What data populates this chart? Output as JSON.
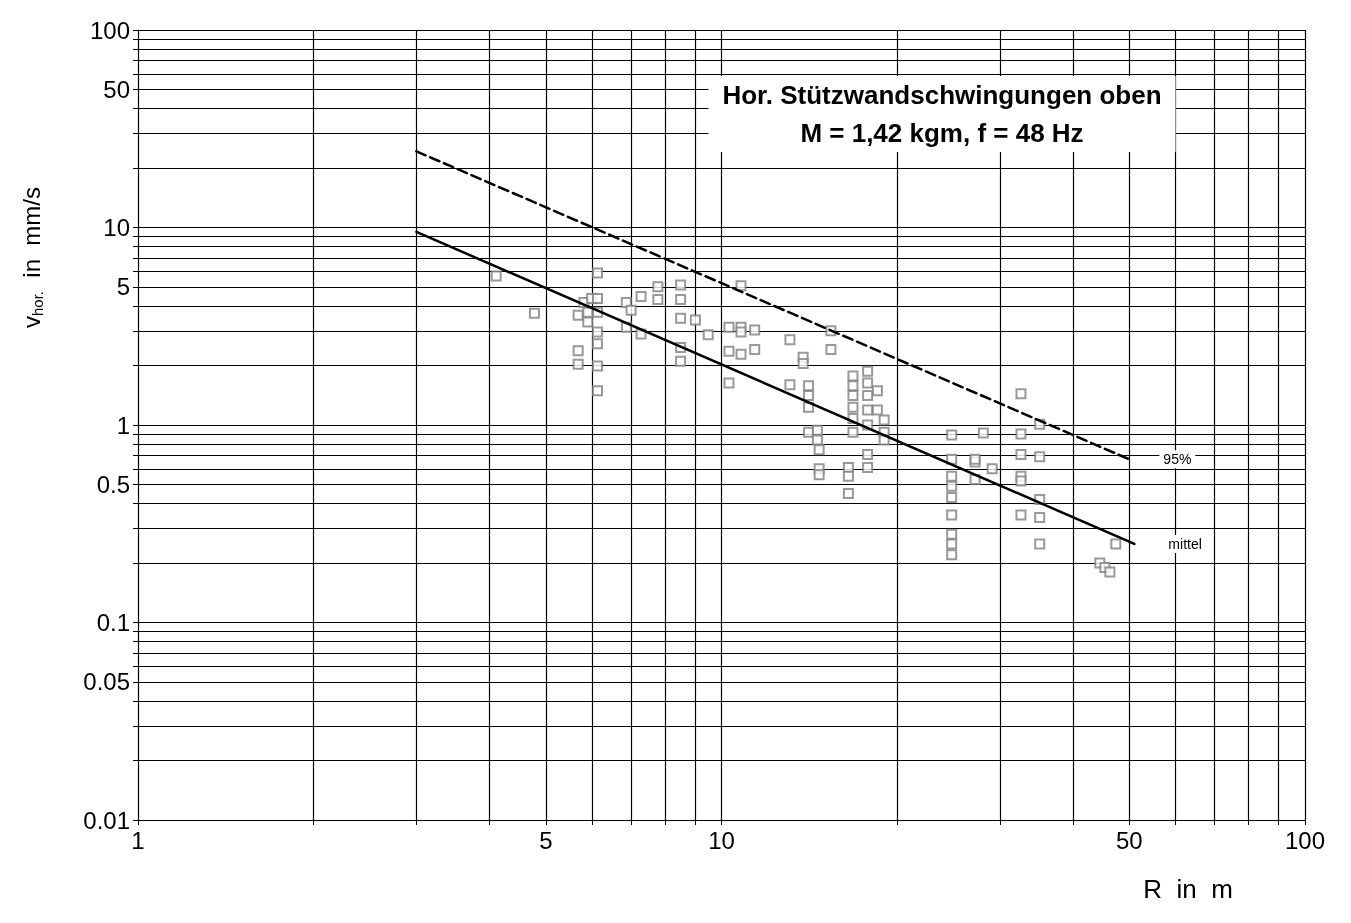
{
  "chart_data": {
    "type": "scatter",
    "title": "Hor. Stützwandschwingungen oben",
    "subtitle": "M = 1,42 kgm, f = 48 Hz",
    "xlabel": "R  in  m",
    "ylabel": "v$_{hor.}$  in  mm/s",
    "log": "xy",
    "grid": true,
    "legend": false,
    "xlim": [
      1,
      100
    ],
    "ylim": [
      0.01,
      100
    ],
    "xticks": [
      1,
      {
        "value": 2,
        "label": null
      },
      {
        "value": 3,
        "label": null
      },
      {
        "value": 4,
        "label": null
      },
      5,
      {
        "value": 6,
        "label": null
      },
      {
        "value": 7,
        "label": null
      },
      {
        "value": 8,
        "label": null
      },
      {
        "value": 9,
        "label": null
      },
      10,
      {
        "value": 20,
        "label": null
      },
      {
        "value": 30,
        "label": null
      },
      {
        "value": 40,
        "label": null
      },
      50,
      {
        "value": 60,
        "label": null
      },
      {
        "value": 70,
        "label": null
      },
      {
        "value": 80,
        "label": null
      },
      {
        "value": 90,
        "label": null
      },
      100
    ],
    "yticks": [
      0.01,
      {
        "value": 0.02,
        "label": null
      },
      {
        "value": 0.03,
        "label": null
      },
      {
        "value": 0.04,
        "label": null
      },
      0.05,
      {
        "value": 0.06,
        "label": null
      },
      {
        "value": 0.07,
        "label": null
      },
      {
        "value": 0.08,
        "label": null
      },
      {
        "value": 0.09,
        "label": null
      },
      0.1,
      {
        "value": 0.2,
        "label": null
      },
      {
        "value": 0.3,
        "label": null
      },
      {
        "value": 0.4,
        "label": null
      },
      0.5,
      {
        "value": 0.6,
        "label": null
      },
      {
        "value": 0.7,
        "label": null
      },
      {
        "value": 0.8,
        "label": null
      },
      {
        "value": 0.9,
        "label": null
      },
      1,
      {
        "value": 2,
        "label": null
      },
      {
        "value": 3,
        "label": null
      },
      {
        "value": 4,
        "label": null
      },
      5,
      {
        "value": 6,
        "label": null
      },
      {
        "value": 7,
        "label": null
      },
      {
        "value": 8,
        "label": null
      },
      {
        "value": 9,
        "label": null
      },
      10,
      {
        "value": 20,
        "label": null
      },
      {
        "value": 30,
        "label": null
      },
      {
        "value": 40,
        "label": null
      },
      50,
      {
        "value": 60,
        "label": null
      },
      {
        "value": 70,
        "label": null
      },
      {
        "value": 80,
        "label": null
      },
      {
        "value": 90,
        "label": null
      },
      100
    ],
    "series": [
      {
        "marker": "square",
        "color": "#808080",
        "x": [
          4.11,
          4.78,
          5.68,
          5.68,
          5.68,
          5.81,
          5.9,
          5.99,
          6.13,
          6.13,
          6.13,
          6.13,
          6.13,
          6.13,
          6.13,
          5.9,
          6.87,
          6.87,
          7.0,
          7.28,
          7.28,
          7.78,
          7.78,
          8.51,
          8.51,
          8.51,
          8.51,
          8.51,
          9.02,
          9.49,
          10.3,
          10.3,
          10.3,
          10.8,
          10.8,
          10.8,
          10.8,
          11.4,
          11.4,
          13.1,
          13.8,
          13.8,
          15.4,
          15.4,
          13.1,
          14.1,
          14.1,
          14.1,
          14.1,
          14.6,
          14.6,
          14.7,
          14.7,
          14.7,
          16.5,
          16.5,
          16.5,
          16.8,
          16.8,
          16.8,
          16.8,
          16.8,
          16.8,
          17.8,
          17.8,
          17.8,
          17.8,
          17.8,
          17.8,
          17.8,
          18.5,
          18.5,
          19.0,
          19.0,
          19.0,
          24.8,
          24.8,
          24.8,
          24.8,
          24.8,
          24.8,
          24.8,
          24.8,
          24.8,
          27.2,
          27.2,
          27.2,
          28.1,
          29.1,
          32.6,
          32.6,
          32.6,
          32.6,
          32.6,
          32.6,
          35.1,
          35.1,
          35.1,
          35.1,
          35.1,
          44.5,
          45.4,
          46.3,
          47.4
        ],
        "values": [
          5.68,
          3.68,
          2.38,
          2.03,
          3.59,
          4.17,
          3.32,
          4.37,
          5.88,
          4.37,
          3.72,
          2.58,
          1.99,
          1.49,
          2.96,
          3.72,
          4.17,
          3.13,
          3.81,
          4.47,
          2.89,
          5.01,
          4.32,
          5.12,
          4.32,
          3.47,
          2.47,
          2.1,
          3.4,
          2.86,
          3.13,
          2.36,
          1.63,
          5.07,
          3.13,
          2.96,
          2.28,
          3.03,
          2.41,
          2.7,
          2.2,
          2.05,
          3.0,
          2.41,
          1.6,
          1.58,
          1.41,
          1.23,
          0.92,
          0.94,
          0.84,
          0.75,
          0.6,
          0.56,
          0.61,
          0.55,
          0.45,
          1.77,
          1.58,
          1.41,
          1.23,
          1.08,
          0.92,
          1.87,
          1.63,
          1.41,
          1.19,
          1.0,
          0.71,
          0.61,
          1.49,
          1.19,
          1.06,
          0.92,
          0.84,
          0.89,
          0.67,
          0.55,
          0.49,
          0.43,
          0.35,
          0.28,
          0.25,
          0.22,
          0.65,
          0.67,
          0.53,
          0.91,
          0.6,
          1.44,
          0.9,
          0.71,
          0.55,
          0.52,
          0.35,
          1.01,
          0.69,
          0.42,
          0.34,
          0.25,
          0.2,
          0.19,
          0.18,
          0.25
        ]
      },
      {
        "type": "line",
        "name": "95%",
        "marker": "none",
        "color": "#000000",
        "line_style": "dashed",
        "x": [
          3,
          50
        ],
        "values": [
          24.3,
          0.67
        ]
      },
      {
        "type": "line",
        "name": "mittel",
        "marker": "none",
        "color": "#000000",
        "line_style": "solid",
        "x": [
          3,
          51
        ],
        "values": [
          9.5,
          0.25
        ]
      }
    ]
  }
}
